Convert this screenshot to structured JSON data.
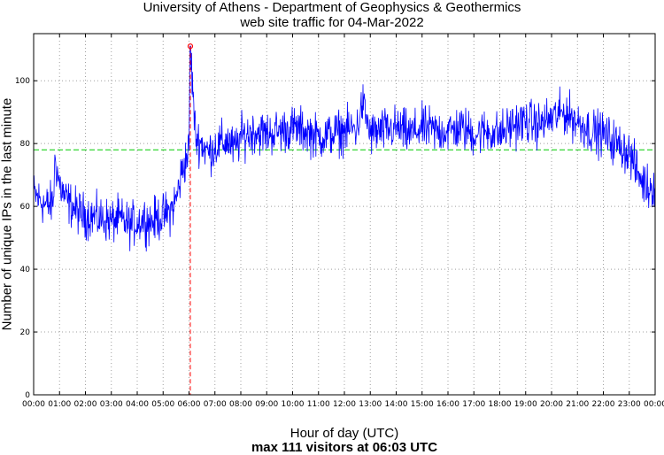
{
  "chart_data": {
    "type": "line",
    "title": "University of Athens - Department of Geophysics & Geothermics",
    "subtitle": "web site traffic for 04-Mar-2022",
    "xlabel": "Hour of day (UTC)",
    "ylabel": "Number of unique IPs in the last minute",
    "footer": "max 111 visitors at 06:03 UTC",
    "xlim": [
      0,
      24
    ],
    "ylim": [
      0,
      115
    ],
    "grid": true,
    "x_tick_labels": [
      "00:00",
      "01:00",
      "02:00",
      "03:00",
      "04:00",
      "05:00",
      "06:00",
      "07:00",
      "08:00",
      "09:00",
      "10:00",
      "11:00",
      "12:00",
      "13:00",
      "14:00",
      "15:00",
      "16:00",
      "17:00",
      "18:00",
      "19:00",
      "20:00",
      "21:00",
      "22:00",
      "23:00",
      "00:00"
    ],
    "y_ticks": [
      0,
      20,
      40,
      60,
      80,
      100
    ],
    "mean": 78,
    "max": {
      "value": 111,
      "time": "06:03",
      "hour": 6.05
    },
    "series": [
      {
        "color": "#0000ff",
        "x": [
          0,
          0.25,
          0.5,
          0.75,
          0.83,
          1,
          1.25,
          1.5,
          1.75,
          2,
          2.25,
          2.5,
          2.75,
          3,
          3.25,
          3.5,
          3.75,
          4,
          4.25,
          4.5,
          4.75,
          5,
          5.25,
          5.5,
          5.75,
          6,
          6.05,
          6.25,
          6.5,
          6.75,
          7,
          7.25,
          7.5,
          7.75,
          8,
          8.5,
          9,
          9.5,
          10,
          10.5,
          11,
          11.5,
          12,
          12.5,
          12.7,
          13,
          13.5,
          14,
          14.5,
          15,
          15.5,
          16,
          16.5,
          17,
          17.5,
          18,
          18.5,
          19,
          19.5,
          20,
          20.5,
          21,
          21.5,
          22,
          22.5,
          23,
          23.25,
          23.5,
          23.75,
          24
        ],
        "values": [
          64,
          62,
          60,
          61,
          75,
          67,
          62,
          60,
          58,
          57,
          57,
          56,
          56,
          55,
          56,
          55,
          54,
          55,
          56,
          55,
          56,
          57,
          58,
          62,
          72,
          78,
          111,
          82,
          80,
          77,
          79,
          80,
          81,
          78,
          82,
          84,
          83,
          84,
          85,
          84,
          82,
          83,
          84,
          85,
          93,
          83,
          84,
          85,
          83,
          85,
          84,
          84,
          85,
          83,
          84,
          83,
          86,
          87,
          86,
          88,
          90,
          87,
          84,
          83,
          80,
          77,
          72,
          68,
          66,
          67
        ],
        "noise": 7
      }
    ]
  },
  "colors": {
    "series": "#0000ff",
    "mean": "#00cc00",
    "max": "#ff0000",
    "grid": "#a0a0a0"
  }
}
